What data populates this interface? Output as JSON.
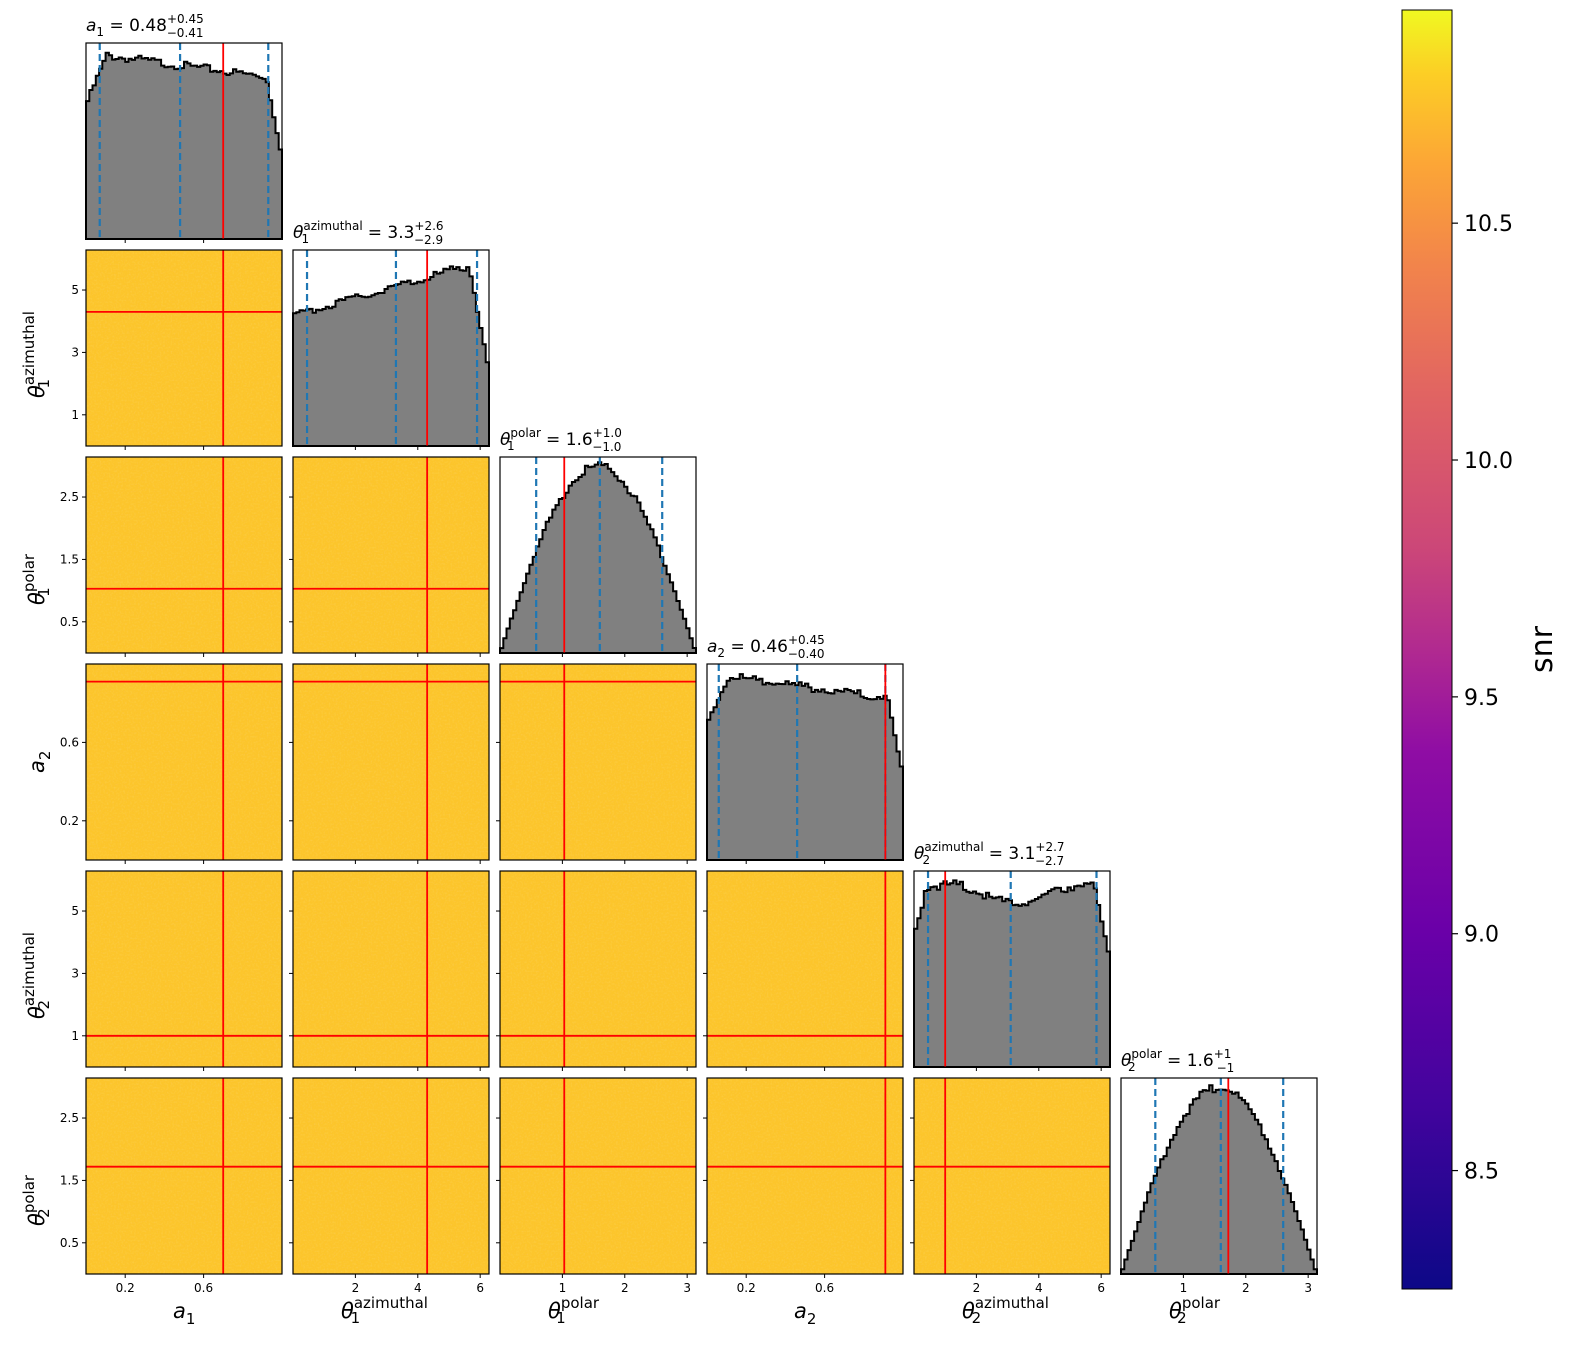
{
  "chart_data": {
    "type": "corner",
    "parameters": [
      {
        "key": "a1",
        "sym": "a",
        "sub": "1",
        "sup": "",
        "range": [
          0,
          1
        ],
        "ticks": [
          {
            "v": 0.2,
            "t": "0.2"
          },
          {
            "v": 0.6,
            "t": "0.6"
          }
        ],
        "truth": 0.7,
        "quantiles": [
          0.07,
          0.48,
          0.93
        ],
        "title_value": "0.48",
        "title_plus": "+0.45",
        "title_minus": "−0.41",
        "hist_shape": "flat-decreasing"
      },
      {
        "key": "theta1_az",
        "sym": "θ",
        "sub": "1",
        "sup": "azimuthal",
        "range": [
          0,
          6.283
        ],
        "ticks": [
          {
            "v": 1,
            "t": "1"
          },
          {
            "v": 3,
            "t": "3"
          },
          {
            "v": 5,
            "t": "5"
          }
        ],
        "xticks": [
          {
            "v": 2,
            "t": "2"
          },
          {
            "v": 4,
            "t": "4"
          },
          {
            "v": 6,
            "t": "6"
          }
        ],
        "truth": 4.3,
        "quantiles": [
          0.45,
          3.3,
          5.9
        ],
        "title_value": "3.3",
        "title_plus": "+2.6",
        "title_minus": "−2.9",
        "hist_shape": "increasing"
      },
      {
        "key": "theta1_pol",
        "sym": "θ",
        "sub": "1",
        "sup": "polar",
        "range": [
          0,
          3.1416
        ],
        "ticks": [
          {
            "v": 0.5,
            "t": "0.5"
          },
          {
            "v": 1.5,
            "t": "1.5"
          },
          {
            "v": 2.5,
            "t": "2.5"
          }
        ],
        "xticks": [
          {
            "v": 1,
            "t": "1"
          },
          {
            "v": 2,
            "t": "2"
          },
          {
            "v": 3,
            "t": "3"
          }
        ],
        "truth": 1.03,
        "quantiles": [
          0.58,
          1.6,
          2.6
        ],
        "title_value": "1.6",
        "title_plus": "+1.0",
        "title_minus": "−1.0",
        "hist_shape": "sine"
      },
      {
        "key": "a2",
        "sym": "a",
        "sub": "2",
        "sup": "",
        "range": [
          0,
          1
        ],
        "ticks": [
          {
            "v": 0.2,
            "t": "0.2"
          },
          {
            "v": 0.6,
            "t": "0.6"
          }
        ],
        "truth": 0.91,
        "quantiles": [
          0.06,
          0.46,
          0.91
        ],
        "title_value": "0.46",
        "title_plus": "+0.45",
        "title_minus": "−0.40",
        "hist_shape": "flat-decreasing"
      },
      {
        "key": "theta2_az",
        "sym": "θ",
        "sub": "2",
        "sup": "azimuthal",
        "range": [
          0,
          6.283
        ],
        "ticks": [
          {
            "v": 1,
            "t": "1"
          },
          {
            "v": 3,
            "t": "3"
          },
          {
            "v": 5,
            "t": "5"
          }
        ],
        "xticks": [
          {
            "v": 2,
            "t": "2"
          },
          {
            "v": 4,
            "t": "4"
          },
          {
            "v": 6,
            "t": "6"
          }
        ],
        "truth": 1.0,
        "quantiles": [
          0.45,
          3.1,
          5.85
        ],
        "title_value": "3.1",
        "title_plus": "+2.7",
        "title_minus": "−2.7",
        "hist_shape": "flat"
      },
      {
        "key": "theta2_pol",
        "sym": "θ",
        "sub": "2",
        "sup": "polar",
        "range": [
          0,
          3.1416
        ],
        "ticks": [
          {
            "v": 0.5,
            "t": "0.5"
          },
          {
            "v": 1.5,
            "t": "1.5"
          },
          {
            "v": 2.5,
            "t": "2.5"
          }
        ],
        "xticks": [
          {
            "v": 1,
            "t": "1"
          },
          {
            "v": 2,
            "t": "2"
          },
          {
            "v": 3,
            "t": "3"
          }
        ],
        "truth": 1.72,
        "quantiles": [
          0.55,
          1.6,
          2.6
        ],
        "title_value": "1.6",
        "title_plus": "+1",
        "title_minus": "−1",
        "hist_shape": "sine"
      }
    ],
    "truth_color": "#ff0000",
    "quantile_color": "#1f77b4",
    "hist_fill": "#808080",
    "colorbar": {
      "label": "snr",
      "colormap": "plasma",
      "range": [
        8.25,
        10.95
      ],
      "ticks": [
        "8.5",
        "9.0",
        "9.5",
        "10.0",
        "10.5"
      ]
    }
  }
}
